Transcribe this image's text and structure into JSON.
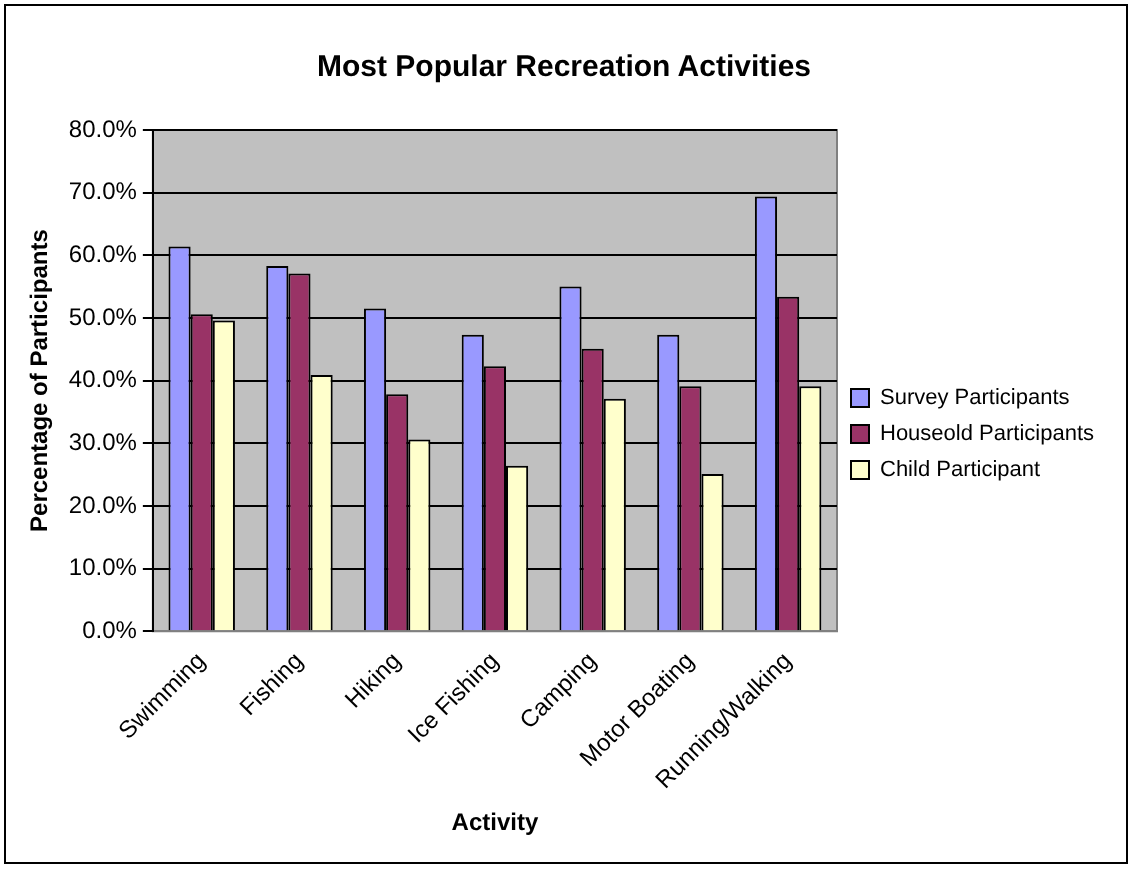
{
  "chart_data": {
    "type": "bar",
    "title": "Most Popular Recreation Activities",
    "xlabel": "Activity",
    "ylabel": "Percentage of Participants",
    "categories": [
      "Swimming",
      "Fishing",
      "Hiking",
      "Ice Fishing",
      "Camping",
      "Motor Boating",
      "Running/Walking"
    ],
    "series": [
      {
        "name": "Survey Participants",
        "color": "#9999ff",
        "values": [
          61.4,
          58.3,
          51.5,
          47.3,
          55.0,
          47.3,
          69.4
        ]
      },
      {
        "name": "Houseold Participants",
        "color": "#993366",
        "values": [
          50.6,
          57.1,
          37.8,
          42.3,
          45.1,
          39.1,
          53.4
        ]
      },
      {
        "name": "Child Participant",
        "color": "#ffffcc",
        "values": [
          49.6,
          40.9,
          30.6,
          26.4,
          37.1,
          25.1,
          39.1
        ]
      }
    ],
    "ylim": [
      0,
      80
    ],
    "yticks": [
      {
        "value": 0,
        "label": "0.0%"
      },
      {
        "value": 10,
        "label": "10.0%"
      },
      {
        "value": 20,
        "label": "20.0%"
      },
      {
        "value": 30,
        "label": "30.0%"
      },
      {
        "value": 40,
        "label": "40.0%"
      },
      {
        "value": 50,
        "label": "50.0%"
      },
      {
        "value": 60,
        "label": "60.0%"
      },
      {
        "value": 70,
        "label": "70.0%"
      },
      {
        "value": 80,
        "label": "80.0%"
      }
    ],
    "grid": "y",
    "legend": "right"
  }
}
